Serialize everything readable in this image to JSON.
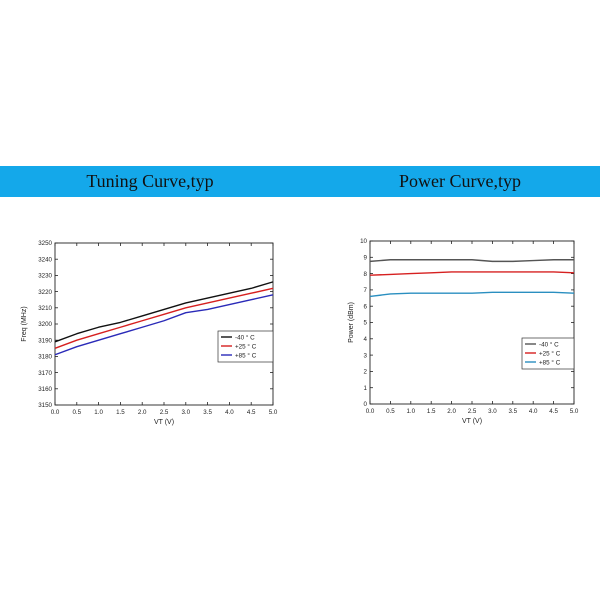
{
  "banner": {
    "left_title": "Tuning Curve,typ",
    "right_title": "Power Curve,typ",
    "color": "#14a8ea"
  },
  "chart_data": [
    {
      "type": "line",
      "title": "",
      "xlabel": "VT (V)",
      "ylabel": "Freq (MHz)",
      "xlim": [
        0.0,
        5.0
      ],
      "ylim": [
        3150,
        3250
      ],
      "x_ticks": [
        "0.0",
        "0.5",
        "1.0",
        "1.5",
        "2.0",
        "2.5",
        "3.0",
        "3.5",
        "4.0",
        "4.5",
        "5.0"
      ],
      "y_ticks": [
        "3150",
        "3160",
        "3170",
        "3180",
        "3190",
        "3200",
        "3210",
        "3220",
        "3230",
        "3240",
        "3250"
      ],
      "x": [
        0.0,
        0.5,
        1.0,
        1.5,
        2.0,
        2.5,
        3.0,
        3.5,
        4.0,
        4.5,
        5.0
      ],
      "grid": false,
      "legend_position": "right",
      "series": [
        {
          "name": "-40 ° C",
          "color": "#111111",
          "values": [
            3189,
            3194,
            3198,
            3201,
            3205,
            3209,
            3213,
            3216,
            3219,
            3222,
            3226
          ]
        },
        {
          "name": "+25 ° C",
          "color": "#d62020",
          "values": [
            3185,
            3190,
            3194,
            3198,
            3202,
            3206,
            3210,
            3213,
            3216,
            3219,
            3222
          ]
        },
        {
          "name": "+85 ° C",
          "color": "#2a2ab8",
          "values": [
            3181,
            3186,
            3190,
            3194,
            3198,
            3202,
            3207,
            3209,
            3212,
            3215,
            3218
          ]
        }
      ]
    },
    {
      "type": "line",
      "title": "",
      "xlabel": "VT (V)",
      "ylabel": "Power (dBm)",
      "xlim": [
        0.0,
        5.0
      ],
      "ylim": [
        0,
        10
      ],
      "x_ticks": [
        "0.0",
        "0.5",
        "1.0",
        "1.5",
        "2.0",
        "2.5",
        "3.0",
        "3.5",
        "4.0",
        "4.5",
        "5.0"
      ],
      "y_ticks": [
        "0",
        "1",
        "2",
        "3",
        "4",
        "5",
        "6",
        "7",
        "8",
        "9",
        "10"
      ],
      "x": [
        0.0,
        0.5,
        1.0,
        1.5,
        2.0,
        2.5,
        3.0,
        3.5,
        4.0,
        4.5,
        5.0
      ],
      "grid": false,
      "legend_position": "right",
      "series": [
        {
          "name": "-40 ° C",
          "color": "#555555",
          "values": [
            8.75,
            8.85,
            8.85,
            8.85,
            8.85,
            8.85,
            8.75,
            8.75,
            8.8,
            8.85,
            8.85
          ]
        },
        {
          "name": "+25 ° C",
          "color": "#d62020",
          "values": [
            7.9,
            7.95,
            8.0,
            8.05,
            8.1,
            8.1,
            8.1,
            8.1,
            8.1,
            8.1,
            8.05
          ]
        },
        {
          "name": "+85 ° C",
          "color": "#2a8fc0",
          "values": [
            6.6,
            6.75,
            6.8,
            6.8,
            6.8,
            6.8,
            6.85,
            6.85,
            6.85,
            6.85,
            6.8
          ]
        }
      ]
    }
  ]
}
